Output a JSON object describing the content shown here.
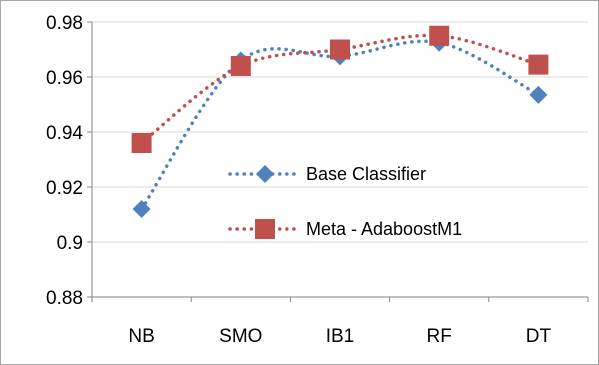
{
  "chart_data": {
    "type": "line",
    "title": "",
    "xlabel": "",
    "ylabel": "",
    "categories": [
      "NB",
      "SMO",
      "IB1",
      "RF",
      "DT"
    ],
    "ylim": [
      0.88,
      0.98
    ],
    "yticks": [
      0.88,
      0.9,
      0.92,
      0.94,
      0.96,
      0.98
    ],
    "ytick_labels": [
      "0.88",
      "0.9",
      "0.92",
      "0.94",
      "0.96",
      "0.98"
    ],
    "grid": "horizontal",
    "legend_position": "center",
    "series": [
      {
        "name": "Base Classifier",
        "values": [
          0.912,
          0.966,
          0.9675,
          0.9725,
          0.9535
        ],
        "color": "#4f81bd",
        "marker": "diamond",
        "line_style": "dotted"
      },
      {
        "name": "Meta - AdaboostM1",
        "values": [
          0.936,
          0.964,
          0.97,
          0.975,
          0.9645
        ],
        "color": "#c0504d",
        "marker": "square",
        "line_style": "dotted"
      }
    ]
  }
}
